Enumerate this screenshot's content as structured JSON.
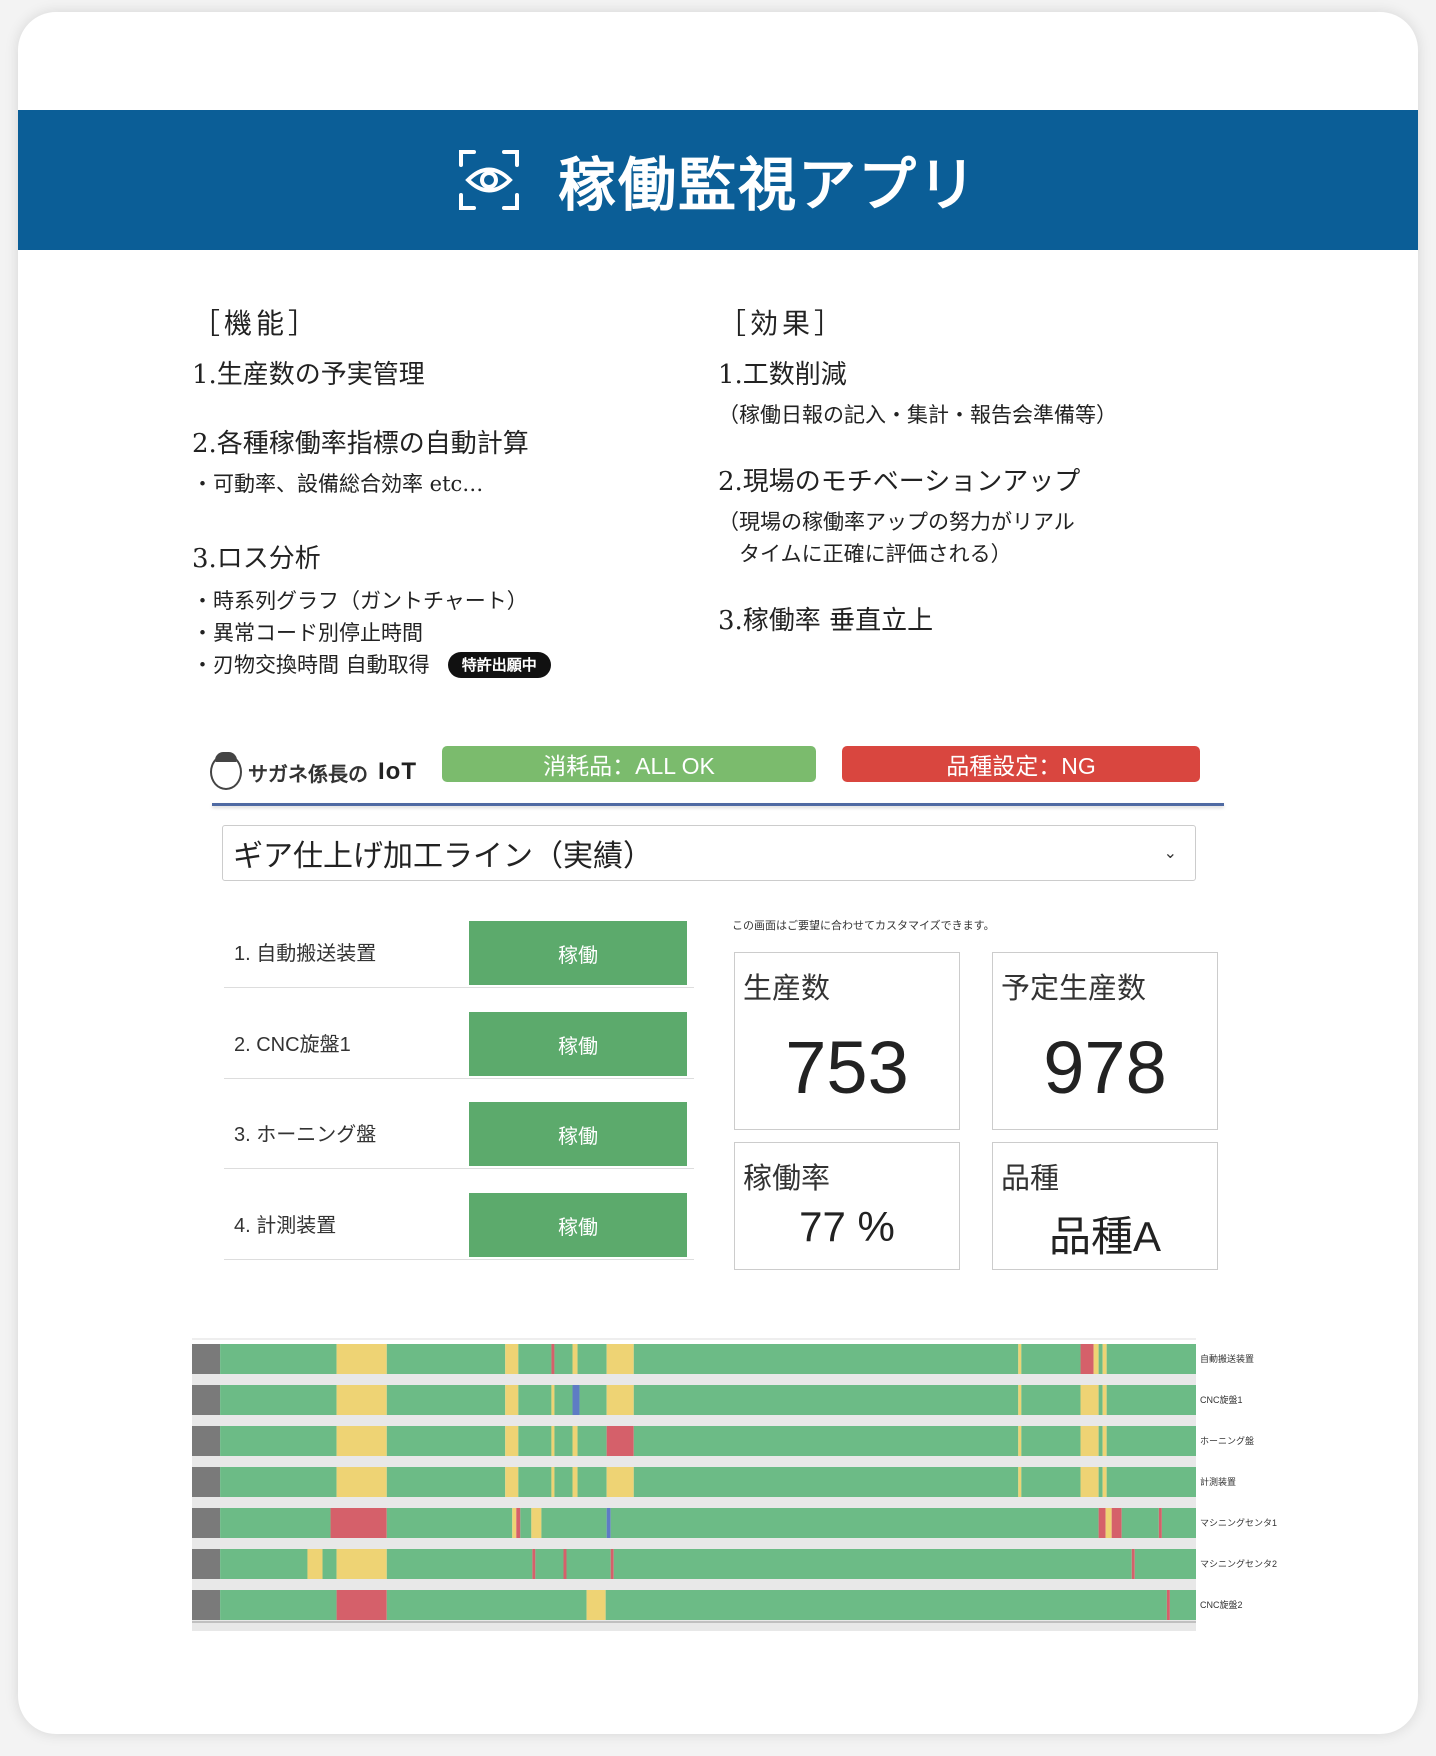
{
  "app": {
    "title": "稼働監視アプリ",
    "icon": "eye-scan-icon"
  },
  "features": {
    "heading": "［機能］",
    "items": [
      {
        "title": "1.生産数の予実管理",
        "subs": []
      },
      {
        "title": "2.各種稼働率指標の自動計算",
        "subs": [
          "・可動率、設備総合効率 etc…"
        ]
      },
      {
        "title": "3.ロス分析",
        "subs": [
          "・時系列グラフ（ガントチャート）",
          "・異常コード別停止時間",
          "・刃物交換時間 自動取得"
        ]
      }
    ],
    "patent_badge": "特許出願中"
  },
  "effects": {
    "heading": "［効果］",
    "items": [
      {
        "title": "1.工数削減",
        "subs": [
          "（稼働日報の記入・集計・報告会準備等）"
        ]
      },
      {
        "title": "2.現場のモチベーションアップ",
        "subs": [
          "（現場の稼働率アップの努力がリアル",
          "　タイムに正確に評価される）"
        ]
      },
      {
        "title": "3.稼働率 垂直立上",
        "subs": []
      }
    ]
  },
  "dashboard": {
    "logo_text": "サガネ係長の",
    "logo_iot": "IoT",
    "consumables_status": "消耗品：ALL OK",
    "product_setting_status": "品種設定：NG",
    "colors": {
      "ok": "#7bbb6d",
      "ng": "#d9463f",
      "running": "#5caa6c"
    },
    "line_select": {
      "value": "ギア仕上げ加工ライン（実績）"
    },
    "note": "この画面はご要望に合わせてカスタマイズできます。",
    "machines": [
      {
        "label": "1. 自動搬送装置",
        "status": "稼働"
      },
      {
        "label": "2. CNC旋盤1",
        "status": "稼働"
      },
      {
        "label": "3. ホーニング盤",
        "status": "稼働"
      },
      {
        "label": "4. 計測装置",
        "status": "稼働"
      }
    ],
    "kpis": {
      "production": {
        "label": "生産数",
        "value": "753"
      },
      "planned": {
        "label": "予定生産数",
        "value": "978"
      },
      "utilization": {
        "label": "稼働率",
        "value": "77 %"
      },
      "product_type": {
        "label": "品種",
        "value": "品種A"
      }
    },
    "gantt": {
      "colors": {
        "gray": "#7a7a7a",
        "green": "#6cbb86",
        "yellow": "#eed374",
        "red": "#d5606a",
        "blue": "#5e7cc4"
      },
      "rows": [
        {
          "name": "自動搬送装置",
          "segments": [
            [
              "gray",
              0,
              2.8
            ],
            [
              "green",
              2.8,
              14.4
            ],
            [
              "yellow",
              14.4,
              19.4
            ],
            [
              "green",
              19.4,
              31.2
            ],
            [
              "yellow",
              31.2,
              32.5
            ],
            [
              "green",
              32.5,
              35.8
            ],
            [
              "red",
              35.8,
              36.1
            ],
            [
              "green",
              36.1,
              37.9
            ],
            [
              "yellow",
              37.9,
              38.4
            ],
            [
              "green",
              38.4,
              41.3
            ],
            [
              "yellow",
              41.3,
              44.0
            ],
            [
              "green",
              44.0,
              82.3
            ],
            [
              "yellow",
              82.3,
              82.6
            ],
            [
              "green",
              82.6,
              88.5
            ],
            [
              "red",
              88.5,
              89.8
            ],
            [
              "yellow",
              89.8,
              90.3
            ],
            [
              "green",
              90.3,
              90.7
            ],
            [
              "yellow",
              90.7,
              91.1
            ],
            [
              "green",
              91.1,
              100
            ]
          ]
        },
        {
          "name": "CNC旋盤1",
          "segments": [
            [
              "gray",
              0,
              2.8
            ],
            [
              "green",
              2.8,
              14.4
            ],
            [
              "yellow",
              14.4,
              19.4
            ],
            [
              "green",
              19.4,
              31.2
            ],
            [
              "yellow",
              31.2,
              32.5
            ],
            [
              "green",
              32.5,
              35.8
            ],
            [
              "yellow",
              35.8,
              36.1
            ],
            [
              "green",
              36.1,
              37.9
            ],
            [
              "blue",
              37.9,
              38.6
            ],
            [
              "green",
              38.6,
              41.3
            ],
            [
              "yellow",
              41.3,
              44.0
            ],
            [
              "green",
              44.0,
              82.3
            ],
            [
              "yellow",
              82.3,
              82.6
            ],
            [
              "green",
              82.6,
              88.5
            ],
            [
              "yellow",
              88.5,
              90.3
            ],
            [
              "green",
              90.3,
              90.7
            ],
            [
              "yellow",
              90.7,
              91.1
            ],
            [
              "green",
              91.1,
              100
            ]
          ]
        },
        {
          "name": "ホーニング盤",
          "segments": [
            [
              "gray",
              0,
              2.8
            ],
            [
              "green",
              2.8,
              14.4
            ],
            [
              "yellow",
              14.4,
              19.4
            ],
            [
              "green",
              19.4,
              31.2
            ],
            [
              "yellow",
              31.2,
              32.5
            ],
            [
              "green",
              32.5,
              35.8
            ],
            [
              "yellow",
              35.8,
              36.1
            ],
            [
              "green",
              36.1,
              37.9
            ],
            [
              "yellow",
              37.9,
              38.4
            ],
            [
              "green",
              38.4,
              41.3
            ],
            [
              "red",
              41.3,
              44.0
            ],
            [
              "green",
              44.0,
              82.3
            ],
            [
              "yellow",
              82.3,
              82.6
            ],
            [
              "green",
              82.6,
              88.5
            ],
            [
              "yellow",
              88.5,
              90.3
            ],
            [
              "green",
              90.3,
              90.7
            ],
            [
              "yellow",
              90.7,
              91.1
            ],
            [
              "green",
              91.1,
              100
            ]
          ]
        },
        {
          "name": "計測装置",
          "segments": [
            [
              "gray",
              0,
              2.8
            ],
            [
              "green",
              2.8,
              14.4
            ],
            [
              "yellow",
              14.4,
              19.4
            ],
            [
              "green",
              19.4,
              31.2
            ],
            [
              "yellow",
              31.2,
              32.5
            ],
            [
              "green",
              32.5,
              35.8
            ],
            [
              "yellow",
              35.8,
              36.1
            ],
            [
              "green",
              36.1,
              37.9
            ],
            [
              "yellow",
              37.9,
              38.4
            ],
            [
              "green",
              38.4,
              41.3
            ],
            [
              "yellow",
              41.3,
              44.0
            ],
            [
              "green",
              44.0,
              82.3
            ],
            [
              "yellow",
              82.3,
              82.6
            ],
            [
              "green",
              82.6,
              88.5
            ],
            [
              "yellow",
              88.5,
              90.3
            ],
            [
              "green",
              90.3,
              90.7
            ],
            [
              "yellow",
              90.7,
              91.1
            ],
            [
              "green",
              91.1,
              100
            ]
          ]
        },
        {
          "name": "マシニングセンタ1",
          "segments": [
            [
              "gray",
              0,
              2.8
            ],
            [
              "green",
              2.8,
              13.8
            ],
            [
              "red",
              13.8,
              19.4
            ],
            [
              "green",
              19.4,
              31.9
            ],
            [
              "yellow",
              31.9,
              32.3
            ],
            [
              "red",
              32.3,
              32.7
            ],
            [
              "green",
              32.7,
              33.8
            ],
            [
              "yellow",
              33.8,
              34.8
            ],
            [
              "green",
              34.8,
              41.3
            ],
            [
              "blue",
              41.3,
              41.7
            ],
            [
              "green",
              41.7,
              90.3
            ],
            [
              "red",
              90.3,
              91.0
            ],
            [
              "yellow",
              91.0,
              91.6
            ],
            [
              "red",
              91.6,
              92.6
            ],
            [
              "green",
              92.6,
              96.3
            ],
            [
              "red",
              96.3,
              96.6
            ],
            [
              "green",
              96.6,
              100
            ]
          ]
        },
        {
          "name": "マシニングセンタ2",
          "segments": [
            [
              "gray",
              0,
              2.8
            ],
            [
              "green",
              2.8,
              11.5
            ],
            [
              "yellow",
              11.5,
              13.0
            ],
            [
              "green",
              13.0,
              14.4
            ],
            [
              "yellow",
              14.4,
              19.4
            ],
            [
              "green",
              19.4,
              33.9
            ],
            [
              "red",
              33.9,
              34.2
            ],
            [
              "green",
              34.2,
              37.0
            ],
            [
              "red",
              37.0,
              37.3
            ],
            [
              "green",
              37.3,
              41.7
            ],
            [
              "red",
              41.7,
              42.0
            ],
            [
              "green",
              42.0,
              93.6
            ],
            [
              "red",
              93.6,
              93.9
            ],
            [
              "green",
              93.9,
              100
            ]
          ]
        },
        {
          "name": "CNC旋盤2",
          "segments": [
            [
              "gray",
              0,
              2.8
            ],
            [
              "green",
              2.8,
              14.4
            ],
            [
              "red",
              14.4,
              19.4
            ],
            [
              "green",
              19.4,
              39.3
            ],
            [
              "yellow",
              39.3,
              41.2
            ],
            [
              "green",
              41.2,
              97.1
            ],
            [
              "red",
              97.1,
              97.4
            ],
            [
              "green",
              97.4,
              100
            ]
          ]
        }
      ]
    }
  }
}
